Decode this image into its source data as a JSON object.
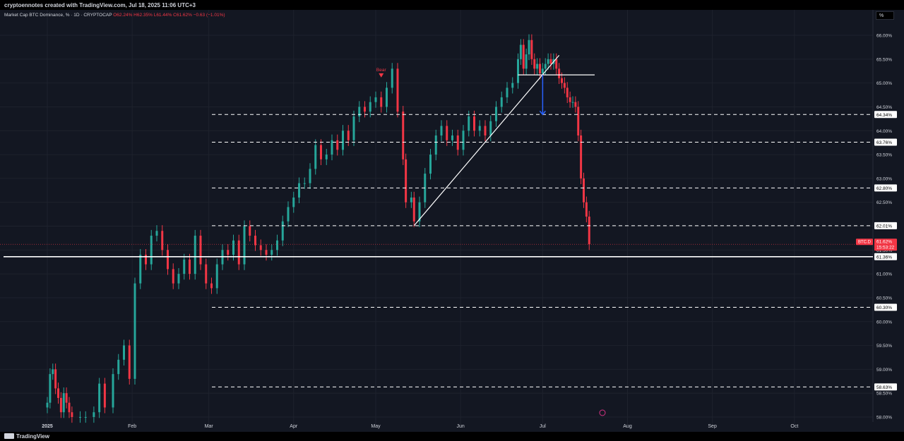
{
  "header": {
    "credit": "cryptoennotes created with TradingView.com, Jul 18, 2025 11:06 UTC+3"
  },
  "legend": {
    "title": "Market Cap BTC Dominance, % · 1D · CRYPTOCAP",
    "ohlc": "O62.24% H62.35% L61.44% C61.62% −0.63 (−1.01%)"
  },
  "scale_button": "%",
  "footer": {
    "brand": "TradingView"
  },
  "colors": {
    "up": "#26a69a",
    "down": "#f23645",
    "background": "#131722",
    "text": "#d1d4dc"
  },
  "chart_data": {
    "type": "candlestick",
    "symbol": "BTC.D",
    "ylim": [
      58.0,
      66.1
    ],
    "y_ticks": [
      "66.00%",
      "65.50%",
      "65.00%",
      "64.50%",
      "64.00%",
      "63.50%",
      "63.00%",
      "62.50%",
      "62.00%",
      "61.50%",
      "61.00%",
      "60.50%",
      "60.00%",
      "59.50%",
      "59.00%",
      "58.50%",
      "58.00%"
    ],
    "x_ticks": [
      "2025",
      "Feb",
      "Mar",
      "Apr",
      "May",
      "Jun",
      "Jul",
      "Aug",
      "Sep",
      "Oct"
    ],
    "levels": [
      {
        "value": 64.34,
        "label": "64.34%",
        "style": "dashed"
      },
      {
        "value": 63.76,
        "label": "63.76%",
        "style": "dashed"
      },
      {
        "value": 62.8,
        "label": "62.80%",
        "style": "dashed"
      },
      {
        "value": 62.01,
        "label": "62.01%",
        "style": "dashed"
      },
      {
        "value": 61.36,
        "label": "61.36%",
        "style": "solid"
      },
      {
        "value": 60.3,
        "label": "60.30%",
        "style": "dashed"
      },
      {
        "value": 58.63,
        "label": "58.63%",
        "style": "dashed"
      }
    ],
    "last_price": {
      "symbol": "BTC.D",
      "value": 61.62,
      "label": "61.62%",
      "countdown": "15:53:22"
    },
    "annotation": {
      "text": "Bear",
      "date": "2025-05-03",
      "value": 65.1
    },
    "trendline": {
      "from": {
        "date": "2025-05-15",
        "value": 62.01
      },
      "to": {
        "date": "2025-07-07",
        "value": 65.58
      }
    },
    "neckline": {
      "from": {
        "date": "2025-06-22",
        "value": 65.17
      },
      "to": {
        "date": "2025-07-20",
        "value": 65.17
      }
    },
    "target_arrow": {
      "date": "2025-07-01",
      "from": 65.17,
      "to": 64.34
    },
    "bars": [
      {
        "d": "2025-01-01",
        "c": 58.3
      },
      {
        "d": "2025-01-02",
        "c": 58.9
      },
      {
        "d": "2025-01-03",
        "c": 59.0
      },
      {
        "d": "2025-01-04",
        "c": 58.6
      },
      {
        "d": "2025-01-05",
        "c": 58.4
      },
      {
        "d": "2025-01-06",
        "c": 58.1
      },
      {
        "d": "2025-01-07",
        "c": 58.5
      },
      {
        "d": "2025-01-08",
        "c": 58.3
      },
      {
        "d": "2025-01-09",
        "c": 58.1
      },
      {
        "d": "2025-01-10",
        "c": 58.0
      },
      {
        "d": "2025-01-13",
        "c": 58.0
      },
      {
        "d": "2025-01-15",
        "c": 58.0
      },
      {
        "d": "2025-01-18",
        "c": 58.1
      },
      {
        "d": "2025-01-20",
        "c": 58.7
      },
      {
        "d": "2025-01-22",
        "c": 58.2
      },
      {
        "d": "2025-01-25",
        "c": 58.9
      },
      {
        "d": "2025-01-27",
        "c": 59.2
      },
      {
        "d": "2025-01-29",
        "c": 59.5
      },
      {
        "d": "2025-01-31",
        "c": 58.8
      },
      {
        "d": "2025-02-02",
        "c": 60.8
      },
      {
        "d": "2025-02-04",
        "c": 61.4
      },
      {
        "d": "2025-02-06",
        "c": 61.2
      },
      {
        "d": "2025-02-08",
        "c": 61.8
      },
      {
        "d": "2025-02-10",
        "c": 61.9
      },
      {
        "d": "2025-02-12",
        "c": 61.5
      },
      {
        "d": "2025-02-14",
        "c": 61.1
      },
      {
        "d": "2025-02-16",
        "c": 60.8
      },
      {
        "d": "2025-02-18",
        "c": 61.0
      },
      {
        "d": "2025-02-20",
        "c": 61.3
      },
      {
        "d": "2025-02-22",
        "c": 61.0
      },
      {
        "d": "2025-02-24",
        "c": 61.8
      },
      {
        "d": "2025-02-26",
        "c": 61.2
      },
      {
        "d": "2025-02-28",
        "c": 60.8
      },
      {
        "d": "2025-03-02",
        "c": 60.7
      },
      {
        "d": "2025-03-04",
        "c": 61.2
      },
      {
        "d": "2025-03-06",
        "c": 61.5
      },
      {
        "d": "2025-03-08",
        "c": 61.4
      },
      {
        "d": "2025-03-10",
        "c": 61.7
      },
      {
        "d": "2025-03-12",
        "c": 61.2
      },
      {
        "d": "2025-03-14",
        "c": 62.0
      },
      {
        "d": "2025-03-16",
        "c": 61.8
      },
      {
        "d": "2025-03-18",
        "c": 61.6
      },
      {
        "d": "2025-03-20",
        "c": 61.5
      },
      {
        "d": "2025-03-22",
        "c": 61.4
      },
      {
        "d": "2025-03-24",
        "c": 61.5
      },
      {
        "d": "2025-03-26",
        "c": 61.7
      },
      {
        "d": "2025-03-28",
        "c": 62.1
      },
      {
        "d": "2025-03-30",
        "c": 62.4
      },
      {
        "d": "2025-04-01",
        "c": 62.6
      },
      {
        "d": "2025-04-03",
        "c": 62.9
      },
      {
        "d": "2025-04-05",
        "c": 62.9
      },
      {
        "d": "2025-04-07",
        "c": 63.2
      },
      {
        "d": "2025-04-09",
        "c": 63.7
      },
      {
        "d": "2025-04-11",
        "c": 63.4
      },
      {
        "d": "2025-04-13",
        "c": 63.5
      },
      {
        "d": "2025-04-15",
        "c": 63.8
      },
      {
        "d": "2025-04-17",
        "c": 63.6
      },
      {
        "d": "2025-04-19",
        "c": 64.0
      },
      {
        "d": "2025-04-21",
        "c": 63.8
      },
      {
        "d": "2025-04-23",
        "c": 64.3
      },
      {
        "d": "2025-04-25",
        "c": 64.5
      },
      {
        "d": "2025-04-27",
        "c": 64.4
      },
      {
        "d": "2025-04-29",
        "c": 64.6
      },
      {
        "d": "2025-05-01",
        "c": 64.7
      },
      {
        "d": "2025-05-03",
        "c": 64.5
      },
      {
        "d": "2025-05-05",
        "c": 64.9
      },
      {
        "d": "2025-05-07",
        "c": 65.3
      },
      {
        "d": "2025-05-09",
        "c": 64.4
      },
      {
        "d": "2025-05-11",
        "c": 63.4
      },
      {
        "d": "2025-05-12",
        "c": 62.5
      },
      {
        "d": "2025-05-14",
        "c": 62.6
      },
      {
        "d": "2025-05-15",
        "c": 62.1
      },
      {
        "d": "2025-05-17",
        "c": 62.5
      },
      {
        "d": "2025-05-19",
        "c": 63.1
      },
      {
        "d": "2025-05-21",
        "c": 63.5
      },
      {
        "d": "2025-05-23",
        "c": 63.9
      },
      {
        "d": "2025-05-25",
        "c": 64.1
      },
      {
        "d": "2025-05-27",
        "c": 63.8
      },
      {
        "d": "2025-05-29",
        "c": 63.9
      },
      {
        "d": "2025-05-31",
        "c": 63.6
      },
      {
        "d": "2025-06-02",
        "c": 64.0
      },
      {
        "d": "2025-06-04",
        "c": 64.3
      },
      {
        "d": "2025-06-06",
        "c": 64.0
      },
      {
        "d": "2025-06-08",
        "c": 64.1
      },
      {
        "d": "2025-06-10",
        "c": 63.9
      },
      {
        "d": "2025-06-12",
        "c": 64.2
      },
      {
        "d": "2025-06-14",
        "c": 64.5
      },
      {
        "d": "2025-06-16",
        "c": 64.7
      },
      {
        "d": "2025-06-18",
        "c": 64.9
      },
      {
        "d": "2025-06-20",
        "c": 65.0
      },
      {
        "d": "2025-06-22",
        "c": 65.5
      },
      {
        "d": "2025-06-23",
        "c": 65.8
      },
      {
        "d": "2025-06-24",
        "c": 65.3
      },
      {
        "d": "2025-06-25",
        "c": 65.6
      },
      {
        "d": "2025-06-26",
        "c": 65.9
      },
      {
        "d": "2025-06-27",
        "c": 65.5
      },
      {
        "d": "2025-06-28",
        "c": 65.3
      },
      {
        "d": "2025-06-29",
        "c": 65.4
      },
      {
        "d": "2025-06-30",
        "c": 65.2
      },
      {
        "d": "2025-07-01",
        "c": 65.3
      },
      {
        "d": "2025-07-02",
        "c": 65.4
      },
      {
        "d": "2025-07-03",
        "c": 65.5
      },
      {
        "d": "2025-07-04",
        "c": 65.4
      },
      {
        "d": "2025-07-05",
        "c": 65.5
      },
      {
        "d": "2025-07-06",
        "c": 65.3
      },
      {
        "d": "2025-07-07",
        "c": 65.1
      },
      {
        "d": "2025-07-08",
        "c": 65.0
      },
      {
        "d": "2025-07-09",
        "c": 64.9
      },
      {
        "d": "2025-07-10",
        "c": 64.7
      },
      {
        "d": "2025-07-11",
        "c": 64.6
      },
      {
        "d": "2025-07-12",
        "c": 64.6
      },
      {
        "d": "2025-07-13",
        "c": 64.5
      },
      {
        "d": "2025-07-14",
        "c": 63.9
      },
      {
        "d": "2025-07-15",
        "c": 63.0
      },
      {
        "d": "2025-07-16",
        "c": 62.5
      },
      {
        "d": "2025-07-17",
        "c": 62.2
      },
      {
        "d": "2025-07-18",
        "c": 61.62
      }
    ]
  }
}
